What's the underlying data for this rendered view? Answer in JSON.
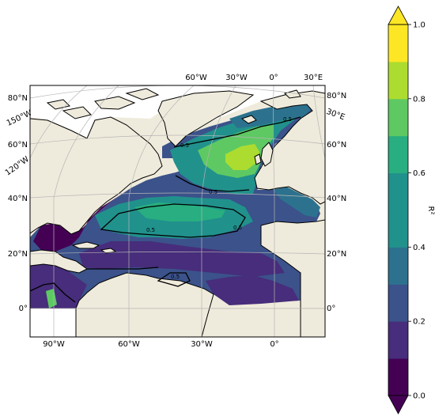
{
  "map": {
    "lat_labels_left": [
      "80°N",
      "60°N",
      "40°N",
      "20°N",
      "0°"
    ],
    "lat_labels_right": [
      "80°N",
      "60°N",
      "40°N",
      "20°N",
      "0°"
    ],
    "lon_labels_bottom": [
      "90°W",
      "60°W",
      "30°W",
      "0°"
    ],
    "lon_labels_top": [
      "60°W",
      "30°W",
      "0°",
      "30°E"
    ],
    "lon_labels_left_curved": [
      "150°W",
      "120°W"
    ],
    "lon_labels_right_curved": [
      "30°E"
    ],
    "contour_label": "0.5",
    "land_color": "#efebdc",
    "background_color": "#ffffff"
  },
  "colorbar": {
    "label": "R²",
    "ticks": [
      "0.0",
      "0.2",
      "0.4",
      "0.6",
      "0.8",
      "1.0"
    ],
    "palette": [
      "#440154",
      "#472d7b",
      "#3b528b",
      "#2c728e",
      "#21918c",
      "#28ae80",
      "#5ec962",
      "#addc30",
      "#fde725"
    ],
    "extend": "both"
  }
}
